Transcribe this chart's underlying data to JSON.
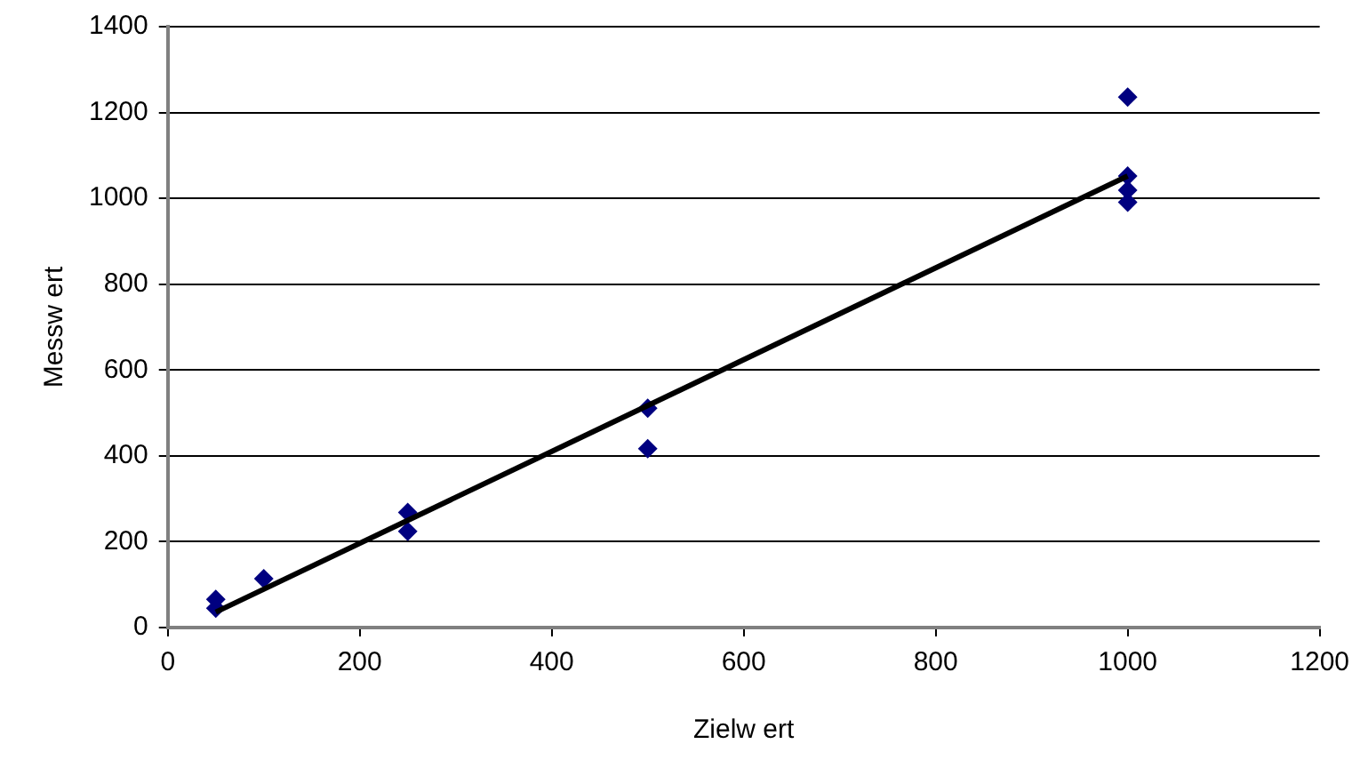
{
  "chart_data": {
    "type": "scatter",
    "xlabel": "Zielw ert",
    "ylabel": "Messw ert",
    "xlim": [
      0,
      1200
    ],
    "ylim": [
      0,
      1400
    ],
    "xticks": [
      0,
      200,
      400,
      600,
      800,
      1000,
      1200
    ],
    "yticks": [
      0,
      200,
      400,
      600,
      800,
      1000,
      1200,
      1400
    ],
    "grid": "y",
    "legend": false,
    "marker": "diamond",
    "series": [
      {
        "color": "#000080",
        "x": [
          50,
          50,
          100,
          250,
          250,
          500,
          500,
          1000,
          1000,
          1000,
          1000
        ],
        "values": [
          66,
          45,
          114,
          268,
          224,
          511,
          417,
          1236,
          1052,
          1019,
          991
        ]
      },
      {
        "type": "line",
        "color": "#000000",
        "x": [
          50,
          1000
        ],
        "values": [
          36,
          1052
        ],
        "marker": "none",
        "line_style": "solid"
      }
    ]
  }
}
